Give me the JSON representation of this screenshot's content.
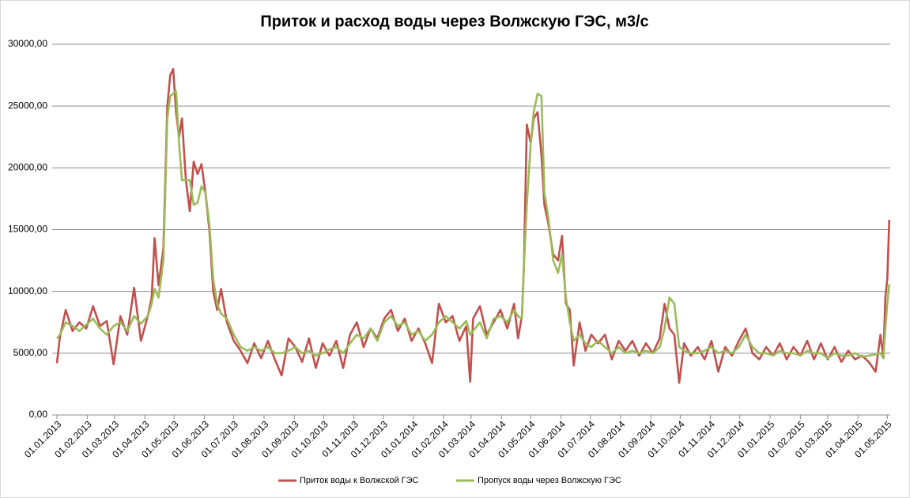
{
  "chart_data": {
    "type": "line",
    "title": "Приток и расход воды через Волжскую ГЭС, м3/с",
    "x": [
      "01.01.2013",
      "04.01.2013",
      "10.01.2013",
      "17.01.2013",
      "24.01.2013",
      "31.01.2013",
      "07.02.2013",
      "14.02.2013",
      "21.02.2013",
      "28.02.2013",
      "07.03.2013",
      "14.03.2013",
      "21.03.2013",
      "28.03.2013",
      "04.04.2013",
      "08.04.2013",
      "11.04.2013",
      "15.04.2013",
      "20.04.2013",
      "24.04.2013",
      "27.04.2013",
      "30.04.2013",
      "03.05.2013",
      "06.05.2013",
      "09.05.2013",
      "13.05.2013",
      "17.05.2013",
      "21.05.2013",
      "25.05.2013",
      "29.05.2013",
      "02.06.2013",
      "06.06.2013",
      "10.06.2013",
      "14.06.2013",
      "18.06.2013",
      "24.06.2013",
      "01.07.2013",
      "08.07.2013",
      "15.07.2013",
      "22.07.2013",
      "29.07.2013",
      "05.08.2013",
      "12.08.2013",
      "19.08.2013",
      "26.08.2013",
      "02.09.2013",
      "09.09.2013",
      "16.09.2013",
      "23.09.2013",
      "30.09.2013",
      "07.10.2013",
      "14.10.2013",
      "21.10.2013",
      "28.10.2013",
      "04.11.2013",
      "11.11.2013",
      "18.11.2013",
      "25.11.2013",
      "02.12.2013",
      "09.12.2013",
      "16.12.2013",
      "23.12.2013",
      "30.12.2013",
      "06.01.2014",
      "13.01.2014",
      "20.01.2014",
      "27.01.2014",
      "03.02.2014",
      "10.02.2014",
      "17.02.2014",
      "24.02.2014",
      "28.02.2014",
      "03.03.2014",
      "10.03.2014",
      "17.03.2014",
      "24.03.2014",
      "31.03.2014",
      "07.04.2014",
      "14.04.2014",
      "18.04.2014",
      "22.04.2014",
      "24.04.2014",
      "27.04.2014",
      "01.05.2014",
      "04.05.2014",
      "08.05.2014",
      "12.05.2014",
      "15.05.2014",
      "19.05.2014",
      "24.05.2014",
      "29.05.2014",
      "02.06.2014",
      "06.06.2014",
      "10.06.2014",
      "14.06.2014",
      "20.06.2014",
      "26.06.2014",
      "02.07.2014",
      "09.07.2014",
      "16.07.2014",
      "23.07.2014",
      "30.07.2014",
      "06.08.2014",
      "13.08.2014",
      "20.08.2014",
      "27.08.2014",
      "03.09.2014",
      "10.09.2014",
      "15.09.2014",
      "20.09.2014",
      "25.09.2014",
      "30.09.2014",
      "05.10.2014",
      "12.10.2014",
      "19.10.2014",
      "26.10.2014",
      "02.11.2014",
      "09.11.2014",
      "16.11.2014",
      "23.11.2014",
      "30.11.2014",
      "07.12.2014",
      "14.12.2014",
      "21.12.2014",
      "28.12.2014",
      "04.01.2015",
      "11.01.2015",
      "18.01.2015",
      "25.01.2015",
      "01.02.2015",
      "08.02.2015",
      "15.02.2015",
      "22.02.2015",
      "01.03.2015",
      "08.03.2015",
      "15.03.2015",
      "22.03.2015",
      "29.03.2015",
      "05.04.2015",
      "12.04.2015",
      "19.04.2015",
      "24.04.2015",
      "27.04.2015",
      "29.04.2015",
      "01.05.2015",
      "03.05.2015"
    ],
    "series": [
      {
        "name": "Приток воды к Волжской ГЭС",
        "color": "#c0504d",
        "values": [
          4200,
          6300,
          8500,
          6800,
          7500,
          7000,
          8800,
          7200,
          7600,
          4100,
          8000,
          6500,
          10300,
          6000,
          8000,
          9500,
          14300,
          10500,
          13500,
          25000,
          27500,
          28000,
          24500,
          22500,
          24000,
          19000,
          16500,
          20500,
          19500,
          20300,
          18000,
          15000,
          10000,
          8500,
          10200,
          7500,
          6000,
          5200,
          4200,
          5800,
          4600,
          6000,
          4500,
          3200,
          6200,
          5500,
          4300,
          6200,
          3800,
          5800,
          4800,
          6000,
          3800,
          6500,
          7500,
          5500,
          7000,
          6200,
          7800,
          8500,
          6800,
          7800,
          6000,
          7000,
          5800,
          4200,
          9000,
          7500,
          8000,
          6000,
          7200,
          2700,
          7800,
          8800,
          6500,
          7500,
          8500,
          7000,
          9000,
          6200,
          8000,
          12000,
          23500,
          22000,
          24000,
          24500,
          21000,
          17000,
          15500,
          13000,
          12500,
          14500,
          9000,
          8500,
          4000,
          7500,
          5200,
          6500,
          5800,
          6500,
          4500,
          6000,
          5200,
          6000,
          4800,
          5800,
          5000,
          6200,
          9000,
          7000,
          6500,
          2600,
          5800,
          4800,
          5500,
          4500,
          6000,
          3500,
          5500,
          4800,
          6000,
          7000,
          5000,
          4500,
          5500,
          4800,
          5800,
          4500,
          5500,
          4800,
          6000,
          4500,
          5800,
          4500,
          5500,
          4300,
          5200,
          4500,
          4800,
          4300,
          3500,
          6500,
          4600,
          9500,
          11000,
          15800
        ]
      },
      {
        "name": "Пропуск воды через Волжскую ГЭС",
        "color": "#9bbb59",
        "values": [
          6200,
          6500,
          7500,
          7200,
          6800,
          7300,
          7800,
          7000,
          6500,
          7200,
          7500,
          6800,
          8000,
          7400,
          8000,
          9000,
          10200,
          9500,
          12500,
          24000,
          25800,
          26000,
          26200,
          22000,
          19000,
          19000,
          19000,
          17000,
          17200,
          18500,
          18000,
          15500,
          11000,
          9000,
          8200,
          7800,
          6500,
          5500,
          5200,
          5500,
          5200,
          5500,
          5000,
          5000,
          5200,
          5500,
          5000,
          5200,
          4800,
          5000,
          5300,
          5500,
          5000,
          5800,
          6500,
          6200,
          7000,
          6000,
          7500,
          8000,
          7200,
          7500,
          6500,
          6800,
          6000,
          6500,
          7500,
          8000,
          7500,
          7000,
          7600,
          6500,
          6800,
          7500,
          6200,
          7800,
          8000,
          7500,
          8500,
          8000,
          7800,
          12000,
          17000,
          22000,
          24500,
          26000,
          25800,
          18000,
          16000,
          12500,
          11500,
          13000,
          9500,
          7500,
          6000,
          6500,
          5800,
          5500,
          6000,
          5500,
          5000,
          5500,
          5000,
          5200,
          5000,
          5200,
          5000,
          5500,
          7000,
          9500,
          9000,
          5500,
          5200,
          5000,
          5000,
          5200,
          5500,
          5000,
          5200,
          5000,
          5500,
          6500,
          5500,
          5000,
          5000,
          4800,
          5200,
          5000,
          5000,
          4800,
          5200,
          5000,
          5000,
          4600,
          5000,
          4800,
          4800,
          5000,
          4700,
          4800,
          4900,
          5000,
          4600,
          7000,
          9000,
          10600
        ]
      }
    ],
    "xlim": [
      "01.01.2013",
      "04.05.2015"
    ],
    "xticks": [
      "01.01.2013",
      "01.02.2013",
      "01.03.2013",
      "01.04.2013",
      "01.05.2013",
      "01.06.2013",
      "01.07.2013",
      "01.08.2013",
      "01.09.2013",
      "01.10.2013",
      "01.11.2013",
      "01.12.2013",
      "01.01.2014",
      "01.02.2014",
      "01.03.2014",
      "01.04.2014",
      "01.05.2014",
      "01.06.2014",
      "01.07.2014",
      "01.08.2014",
      "01.09.2014",
      "01.10.2014",
      "01.11.2014",
      "01.12.2014",
      "01.01.2015",
      "01.02.2015",
      "01.03.2015",
      "01.04.2015",
      "01.05.2015"
    ],
    "ylim": [
      0,
      30000
    ],
    "yticks": [
      {
        "value": 0,
        "label": "0,00"
      },
      {
        "value": 5000,
        "label": "5000,00"
      },
      {
        "value": 10000,
        "label": "10000,00"
      },
      {
        "value": 15000,
        "label": "15000,00"
      },
      {
        "value": 20000,
        "label": "20000,00"
      },
      {
        "value": 25000,
        "label": "25000,00"
      },
      {
        "value": 30000,
        "label": "30000,00"
      }
    ],
    "grid": true,
    "legend": "bottom"
  }
}
